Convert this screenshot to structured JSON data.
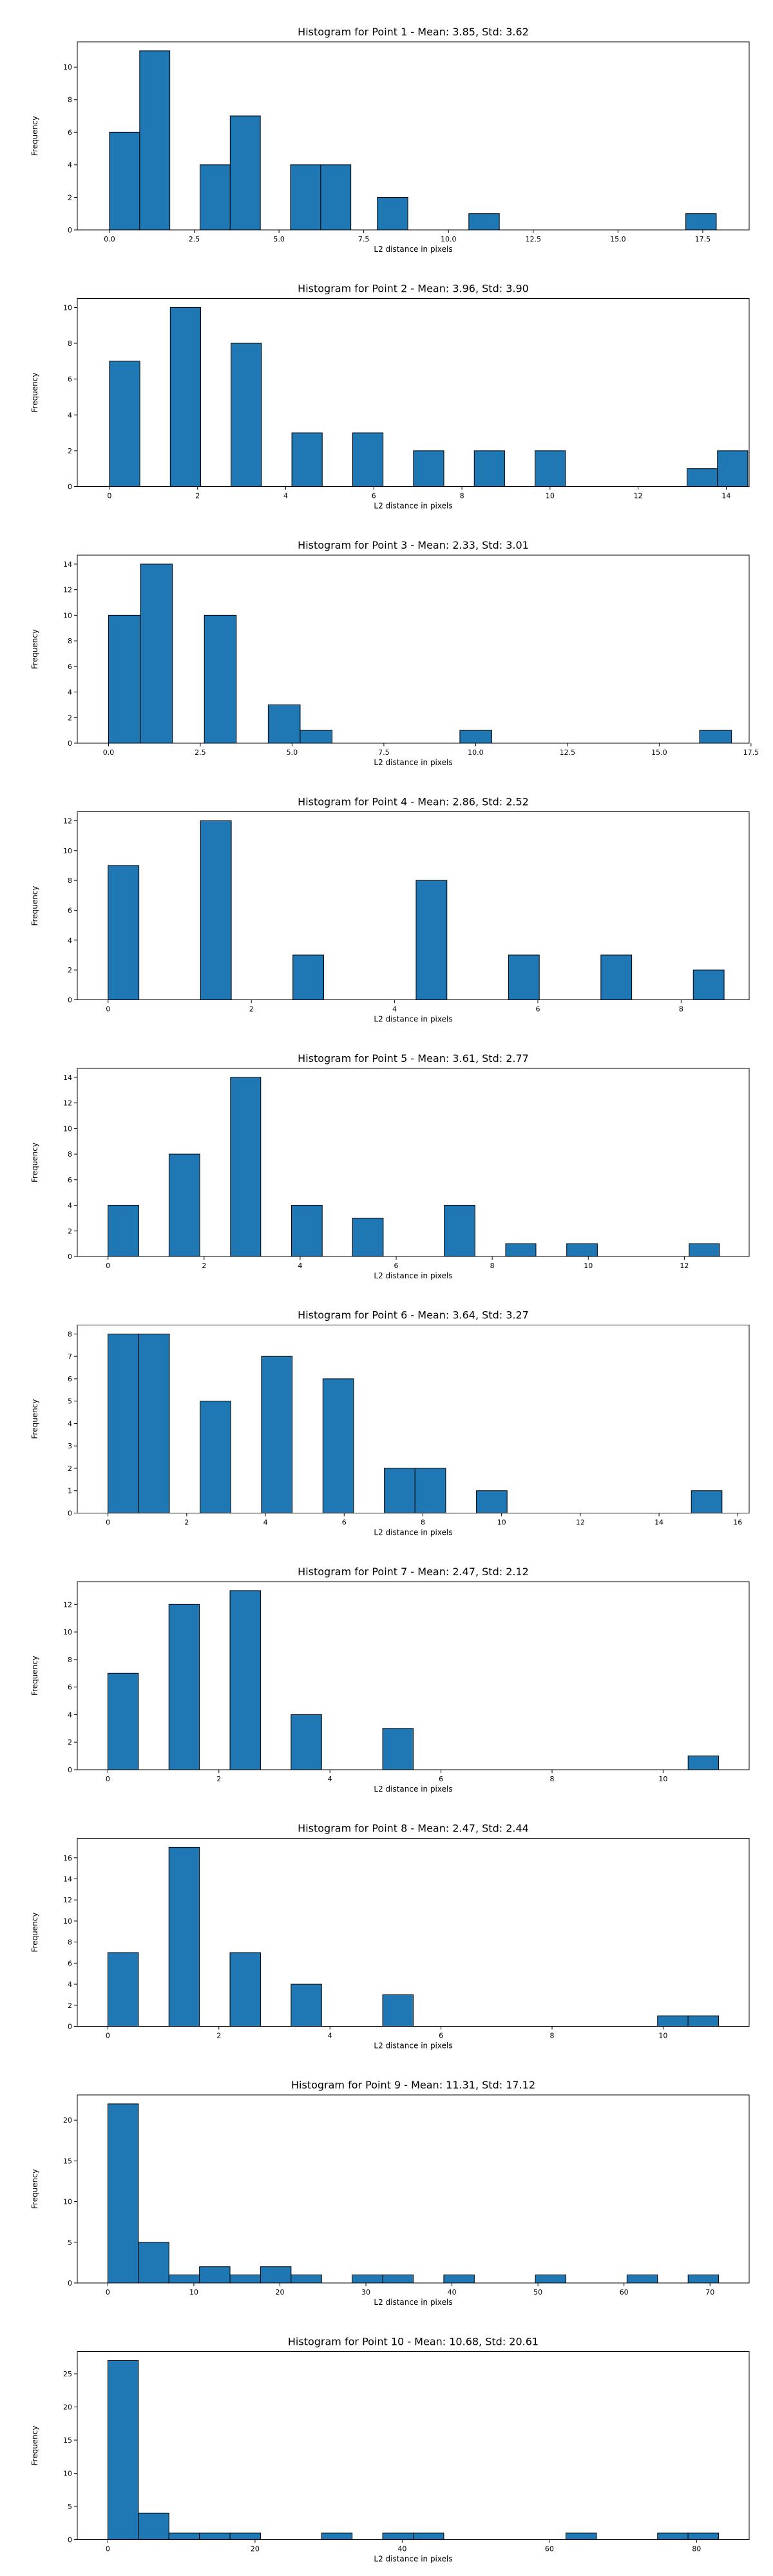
{
  "style": {
    "bar_color": "#1f77b4",
    "edge_color": "#000000"
  },
  "chart_data": [
    {
      "type": "bar",
      "title": "Histogram for Point 1 - Mean: 3.85, Std: 3.62",
      "xlabel": "L2 distance in pixels",
      "ylabel": "Frequency",
      "xlim": [
        -0.95,
        18.87
      ],
      "ylim": [
        0,
        11.55
      ],
      "xticks": [
        0.0,
        2.5,
        5.0,
        7.5,
        10.0,
        12.5,
        15.0,
        17.5
      ],
      "xtick_labels": [
        "0.0",
        "2.5",
        "5.0",
        "7.5",
        "10.0",
        "12.5",
        "15.0",
        "17.5"
      ],
      "yticks": [
        0,
        2,
        4,
        6,
        8,
        10
      ],
      "bins": [
        [
          0,
          0.89,
          6
        ],
        [
          0.89,
          1.78,
          11
        ],
        [
          2.67,
          3.56,
          4
        ],
        [
          3.56,
          4.45,
          7
        ],
        [
          5.34,
          6.23,
          4
        ],
        [
          6.23,
          7.12,
          4
        ],
        [
          7.9,
          8.8,
          2
        ],
        [
          10.6,
          11.5,
          1
        ],
        [
          17.0,
          17.9,
          1
        ]
      ]
    },
    {
      "type": "bar",
      "title": "Histogram for Point 2 - Mean: 3.96, Std: 3.90",
      "xlabel": "L2 distance in pixels",
      "ylabel": "Frequency",
      "xlim": [
        -0.73,
        14.52
      ],
      "ylim": [
        0,
        10.5
      ],
      "xticks": [
        0,
        2,
        4,
        6,
        8,
        10,
        12,
        14
      ],
      "xtick_labels": [
        "0",
        "2",
        "4",
        "6",
        "8",
        "10",
        "12",
        "14"
      ],
      "yticks": [
        0,
        2,
        4,
        6,
        8,
        10
      ],
      "bins": [
        [
          0,
          0.69,
          7
        ],
        [
          1.38,
          2.07,
          10
        ],
        [
          2.76,
          3.45,
          8
        ],
        [
          4.14,
          4.83,
          3
        ],
        [
          5.52,
          6.21,
          3
        ],
        [
          6.9,
          7.59,
          2
        ],
        [
          8.28,
          8.97,
          2
        ],
        [
          9.66,
          10.35,
          2
        ],
        [
          13.11,
          13.8,
          1
        ],
        [
          13.8,
          14.49,
          2
        ]
      ]
    },
    {
      "type": "bar",
      "title": "Histogram for Point 3 - Mean: 2.33, Std: 3.01",
      "xlabel": "L2 distance in pixels",
      "ylabel": "Frequency",
      "xlim": [
        -0.85,
        17.45
      ],
      "ylim": [
        0,
        14.7
      ],
      "xticks": [
        0.0,
        2.5,
        5.0,
        7.5,
        10.0,
        12.5,
        15.0,
        17.5
      ],
      "xtick_labels": [
        "0.0",
        "2.5",
        "5.0",
        "7.5",
        "10.0",
        "12.5",
        "15.0",
        "17.5"
      ],
      "yticks": [
        0,
        2,
        4,
        6,
        8,
        10,
        12,
        14
      ],
      "bins": [
        [
          0,
          0.87,
          10
        ],
        [
          0.87,
          1.74,
          14
        ],
        [
          2.61,
          3.48,
          10
        ],
        [
          4.35,
          5.22,
          3
        ],
        [
          5.22,
          6.09,
          1
        ],
        [
          9.57,
          10.44,
          1
        ],
        [
          16.1,
          16.97,
          1
        ]
      ]
    },
    {
      "type": "bar",
      "title": "Histogram for Point 4 - Mean: 2.86, Std: 2.52",
      "xlabel": "L2 distance in pixels",
      "ylabel": "Frequency",
      "xlim": [
        -0.43,
        8.95
      ],
      "ylim": [
        0,
        12.6
      ],
      "xticks": [
        0,
        2,
        4,
        6,
        8
      ],
      "xtick_labels": [
        "0",
        "2",
        "4",
        "6",
        "8"
      ],
      "yticks": [
        0,
        2,
        4,
        6,
        8,
        10,
        12
      ],
      "bins": [
        [
          0,
          0.43,
          9
        ],
        [
          1.29,
          1.72,
          12
        ],
        [
          2.58,
          3.01,
          3
        ],
        [
          4.3,
          4.73,
          8
        ],
        [
          5.59,
          6.02,
          3
        ],
        [
          6.88,
          7.31,
          3
        ],
        [
          8.17,
          8.6,
          2
        ]
      ]
    },
    {
      "type": "bar",
      "title": "Histogram for Point 5 - Mean: 3.61, Std: 2.77",
      "xlabel": "L2 distance in pixels",
      "ylabel": "Frequency",
      "xlim": [
        -0.64,
        13.35
      ],
      "ylim": [
        0,
        14.7
      ],
      "xticks": [
        0,
        2,
        4,
        6,
        8,
        10,
        12
      ],
      "xtick_labels": [
        "0",
        "2",
        "4",
        "6",
        "8",
        "10",
        "12"
      ],
      "yticks": [
        0,
        2,
        4,
        6,
        8,
        10,
        12,
        14
      ],
      "bins": [
        [
          0,
          0.64,
          4
        ],
        [
          1.27,
          1.91,
          8
        ],
        [
          2.55,
          3.18,
          14
        ],
        [
          3.82,
          4.46,
          4
        ],
        [
          5.09,
          5.73,
          3
        ],
        [
          7.0,
          7.64,
          4
        ],
        [
          8.28,
          8.91,
          1
        ],
        [
          9.55,
          10.19,
          1
        ],
        [
          12.1,
          12.73,
          1
        ]
      ]
    },
    {
      "type": "bar",
      "title": "Histogram for Point 6 - Mean: 3.64, Std: 3.27",
      "xlabel": "L2 distance in pixels",
      "ylabel": "Frequency",
      "xlim": [
        -0.78,
        16.29
      ],
      "ylim": [
        0,
        8.4
      ],
      "xticks": [
        0,
        2,
        4,
        6,
        8,
        10,
        12,
        14,
        16
      ],
      "xtick_labels": [
        "0",
        "2",
        "4",
        "6",
        "8",
        "10",
        "12",
        "14",
        "16"
      ],
      "yticks": [
        0,
        1,
        2,
        3,
        4,
        5,
        6,
        7,
        8
      ],
      "bins": [
        [
          0,
          0.78,
          8
        ],
        [
          0.78,
          1.56,
          8
        ],
        [
          2.34,
          3.12,
          5
        ],
        [
          3.9,
          4.68,
          7
        ],
        [
          5.46,
          6.24,
          6
        ],
        [
          7.02,
          7.8,
          2
        ],
        [
          7.8,
          8.58,
          2
        ],
        [
          9.36,
          10.14,
          1
        ],
        [
          14.82,
          15.6,
          1
        ]
      ]
    },
    {
      "type": "bar",
      "title": "Histogram for Point 7 - Mean: 2.47, Std: 2.12",
      "xlabel": "L2 distance in pixels",
      "ylabel": "Frequency",
      "xlim": [
        -0.55,
        11.55
      ],
      "ylim": [
        0,
        13.65
      ],
      "xticks": [
        0,
        2,
        4,
        6,
        8,
        10
      ],
      "xtick_labels": [
        "0",
        "2",
        "4",
        "6",
        "8",
        "10"
      ],
      "yticks": [
        0,
        2,
        4,
        6,
        8,
        10,
        12
      ],
      "bins": [
        [
          0,
          0.55,
          7
        ],
        [
          1.1,
          1.65,
          12
        ],
        [
          2.2,
          2.75,
          13
        ],
        [
          3.3,
          3.85,
          4
        ],
        [
          4.95,
          5.5,
          3
        ],
        [
          10.45,
          11.0,
          1
        ]
      ]
    },
    {
      "type": "bar",
      "title": "Histogram for Point 8 - Mean: 2.47, Std: 2.44",
      "xlabel": "L2 distance in pixels",
      "ylabel": "Frequency",
      "xlim": [
        -0.55,
        11.55
      ],
      "ylim": [
        0,
        17.85
      ],
      "xticks": [
        0,
        2,
        4,
        6,
        8,
        10
      ],
      "xtick_labels": [
        "0",
        "2",
        "4",
        "6",
        "8",
        "10"
      ],
      "yticks": [
        0,
        2,
        4,
        6,
        8,
        10,
        12,
        14,
        16
      ],
      "bins": [
        [
          0,
          0.55,
          7
        ],
        [
          1.1,
          1.65,
          17
        ],
        [
          2.2,
          2.75,
          7
        ],
        [
          3.3,
          3.85,
          4
        ],
        [
          4.95,
          5.5,
          3
        ],
        [
          9.9,
          10.45,
          1
        ],
        [
          10.45,
          11.0,
          1
        ]
      ]
    },
    {
      "type": "bar",
      "title": "Histogram for Point 9 - Mean: 11.31, Std: 17.12",
      "xlabel": "L2 distance in pixels",
      "ylabel": "Frequency",
      "xlim": [
        -3.55,
        74.55
      ],
      "ylim": [
        0,
        23.1
      ],
      "xticks": [
        0,
        10,
        20,
        30,
        40,
        50,
        60,
        70
      ],
      "xtick_labels": [
        "0",
        "10",
        "20",
        "30",
        "40",
        "50",
        "60",
        "70"
      ],
      "yticks": [
        0,
        5,
        10,
        15,
        20
      ],
      "bins": [
        [
          0,
          3.55,
          22
        ],
        [
          3.55,
          7.1,
          5
        ],
        [
          7.1,
          10.65,
          1
        ],
        [
          10.65,
          14.2,
          2
        ],
        [
          14.2,
          17.75,
          1
        ],
        [
          17.75,
          21.3,
          2
        ],
        [
          21.3,
          24.85,
          1
        ],
        [
          28.4,
          31.95,
          1
        ],
        [
          31.95,
          35.5,
          1
        ],
        [
          39.05,
          42.6,
          1
        ],
        [
          49.7,
          53.25,
          1
        ],
        [
          60.35,
          63.9,
          1
        ],
        [
          67.45,
          71.0,
          1
        ]
      ]
    },
    {
      "type": "bar",
      "title": "Histogram for Point 10 - Mean: 10.68, Std: 20.61",
      "xlabel": "L2 distance in pixels",
      "ylabel": "Frequency",
      "xlim": [
        -4.15,
        87.15
      ],
      "ylim": [
        0,
        28.35
      ],
      "xticks": [
        0,
        20,
        40,
        60,
        80
      ],
      "xtick_labels": [
        "0",
        "20",
        "40",
        "60",
        "80"
      ],
      "yticks": [
        0,
        5,
        10,
        15,
        20,
        25
      ],
      "bins": [
        [
          0,
          4.15,
          27
        ],
        [
          4.15,
          8.3,
          4
        ],
        [
          8.3,
          12.45,
          1
        ],
        [
          12.45,
          16.6,
          1
        ],
        [
          16.6,
          20.75,
          1
        ],
        [
          29.05,
          33.2,
          1
        ],
        [
          37.35,
          41.5,
          1
        ],
        [
          41.5,
          45.65,
          1
        ],
        [
          62.25,
          66.4,
          1
        ],
        [
          74.7,
          78.85,
          1
        ],
        [
          78.85,
          83.0,
          1
        ]
      ]
    }
  ]
}
